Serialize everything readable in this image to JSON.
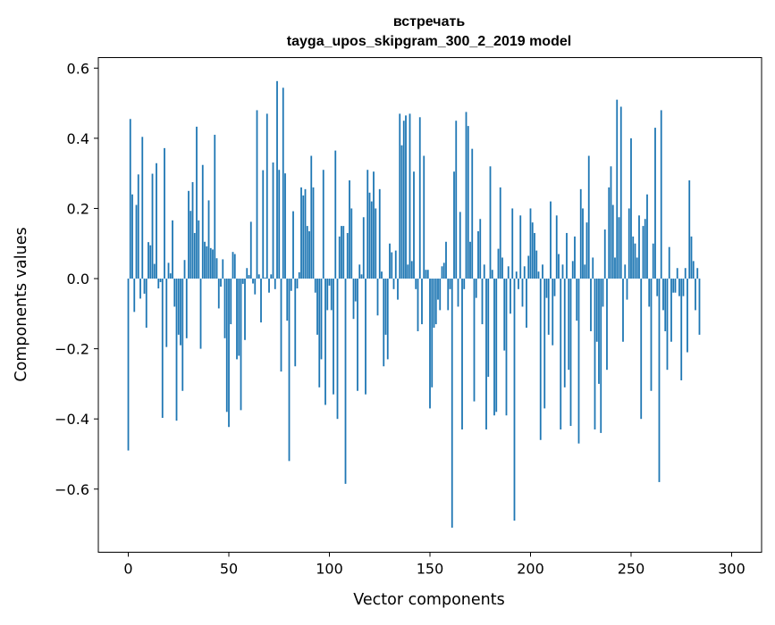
{
  "chart_data": {
    "type": "bar",
    "title": "встречать",
    "subtitle": "tayga_upos_skipgram_300_2_2019 model",
    "xlabel": "Vector components",
    "ylabel": "Components values",
    "xlim": [
      -14.9,
      314.9
    ],
    "ylim": [
      -0.78,
      0.63
    ],
    "xticks": [
      0,
      50,
      100,
      150,
      200,
      250,
      300
    ],
    "yticks": [
      -0.6,
      -0.4,
      -0.2,
      0.0,
      0.2,
      0.4,
      0.6
    ],
    "ytick_labels": [
      "−0.6",
      "−0.4",
      "−0.2",
      "0.0",
      "0.2",
      "0.4",
      "0.6"
    ],
    "bar_color": "#1f77b4",
    "bar_width": 0.8,
    "values": [
      -0.49,
      0.455,
      0.24,
      -0.095,
      0.21,
      0.297,
      -0.057,
      0.404,
      -0.043,
      -0.14,
      0.104,
      0.095,
      0.299,
      0.042,
      0.329,
      -0.028,
      -0.01,
      -0.397,
      0.372,
      -0.195,
      0.045,
      0.015,
      0.166,
      -0.08,
      -0.405,
      -0.16,
      -0.19,
      -0.32,
      0.053,
      -0.17,
      0.25,
      0.193,
      0.275,
      0.13,
      0.433,
      0.166,
      -0.2,
      0.324,
      0.105,
      0.092,
      0.223,
      0.087,
      0.083,
      0.41,
      0.058,
      -0.085,
      -0.023,
      0.055,
      -0.17,
      -0.38,
      -0.423,
      -0.13,
      0.076,
      0.07,
      -0.23,
      -0.22,
      -0.375,
      -0.015,
      -0.175,
      0.03,
      0.01,
      0.162,
      -0.014,
      -0.045,
      0.48,
      0.012,
      -0.125,
      0.309,
      0.003,
      0.47,
      -0.04,
      0.012,
      0.331,
      -0.03,
      0.563,
      0.31,
      -0.265,
      0.544,
      0.3,
      -0.12,
      -0.52,
      -0.035,
      0.192,
      -0.25,
      -0.028,
      0.018,
      0.26,
      0.237,
      0.255,
      0.15,
      0.135,
      0.35,
      0.26,
      -0.04,
      -0.16,
      -0.31,
      -0.23,
      0.31,
      -0.36,
      -0.09,
      -0.02,
      -0.09,
      -0.33,
      0.365,
      -0.4,
      0.12,
      0.15,
      0.15,
      -0.585,
      0.13,
      0.28,
      0.2,
      -0.115,
      -0.065,
      -0.32,
      0.04,
      0.012,
      0.175,
      -0.33,
      0.31,
      0.245,
      0.22,
      0.305,
      0.2,
      -0.105,
      0.255,
      0.02,
      -0.25,
      -0.16,
      -0.23,
      0.1,
      0.075,
      -0.03,
      0.08,
      -0.06,
      0.47,
      0.38,
      0.45,
      0.465,
      0.04,
      0.47,
      0.05,
      0.305,
      -0.03,
      -0.15,
      0.46,
      -0.13,
      0.35,
      0.025,
      0.025,
      -0.37,
      -0.31,
      -0.14,
      -0.13,
      -0.06,
      -0.09,
      0.035,
      0.045,
      0.105,
      -0.09,
      -0.03,
      -0.71,
      0.305,
      0.45,
      -0.08,
      0.19,
      -0.43,
      -0.03,
      0.475,
      0.435,
      0.105,
      0.37,
      -0.35,
      -0.055,
      0.135,
      0.17,
      -0.13,
      0.04,
      -0.43,
      -0.28,
      0.32,
      0.025,
      -0.39,
      -0.38,
      0.085,
      0.26,
      0.06,
      -0.205,
      -0.39,
      0.035,
      -0.1,
      0.2,
      -0.69,
      0.02,
      -0.03,
      0.18,
      -0.08,
      0.035,
      -0.14,
      0.065,
      0.2,
      0.16,
      0.13,
      0.08,
      0.02,
      -0.46,
      0.04,
      -0.37,
      -0.055,
      -0.16,
      0.22,
      -0.19,
      -0.05,
      0.18,
      0.07,
      -0.43,
      0.04,
      -0.31,
      0.13,
      -0.26,
      -0.42,
      0.05,
      0.12,
      -0.12,
      -0.47,
      0.255,
      0.2,
      0.04,
      0.16,
      0.35,
      -0.15,
      0.06,
      -0.43,
      -0.18,
      -0.3,
      -0.44,
      -0.08,
      0.14,
      -0.26,
      0.26,
      0.32,
      0.21,
      0.06,
      0.51,
      0.175,
      0.49,
      -0.18,
      0.04,
      -0.06,
      0.2,
      0.4,
      0.12,
      0.1,
      0.06,
      0.18,
      -0.4,
      0.15,
      0.17,
      0.24,
      -0.08,
      -0.32,
      0.1,
      0.43,
      -0.05,
      -0.58,
      0.48,
      -0.09,
      -0.15,
      -0.26,
      0.09,
      -0.18,
      -0.04,
      -0.04,
      0.03,
      -0.05,
      -0.29,
      -0.05,
      0.03,
      -0.21,
      0.28,
      0.12,
      0.05,
      -0.09,
      0.03,
      -0.16
    ]
  }
}
